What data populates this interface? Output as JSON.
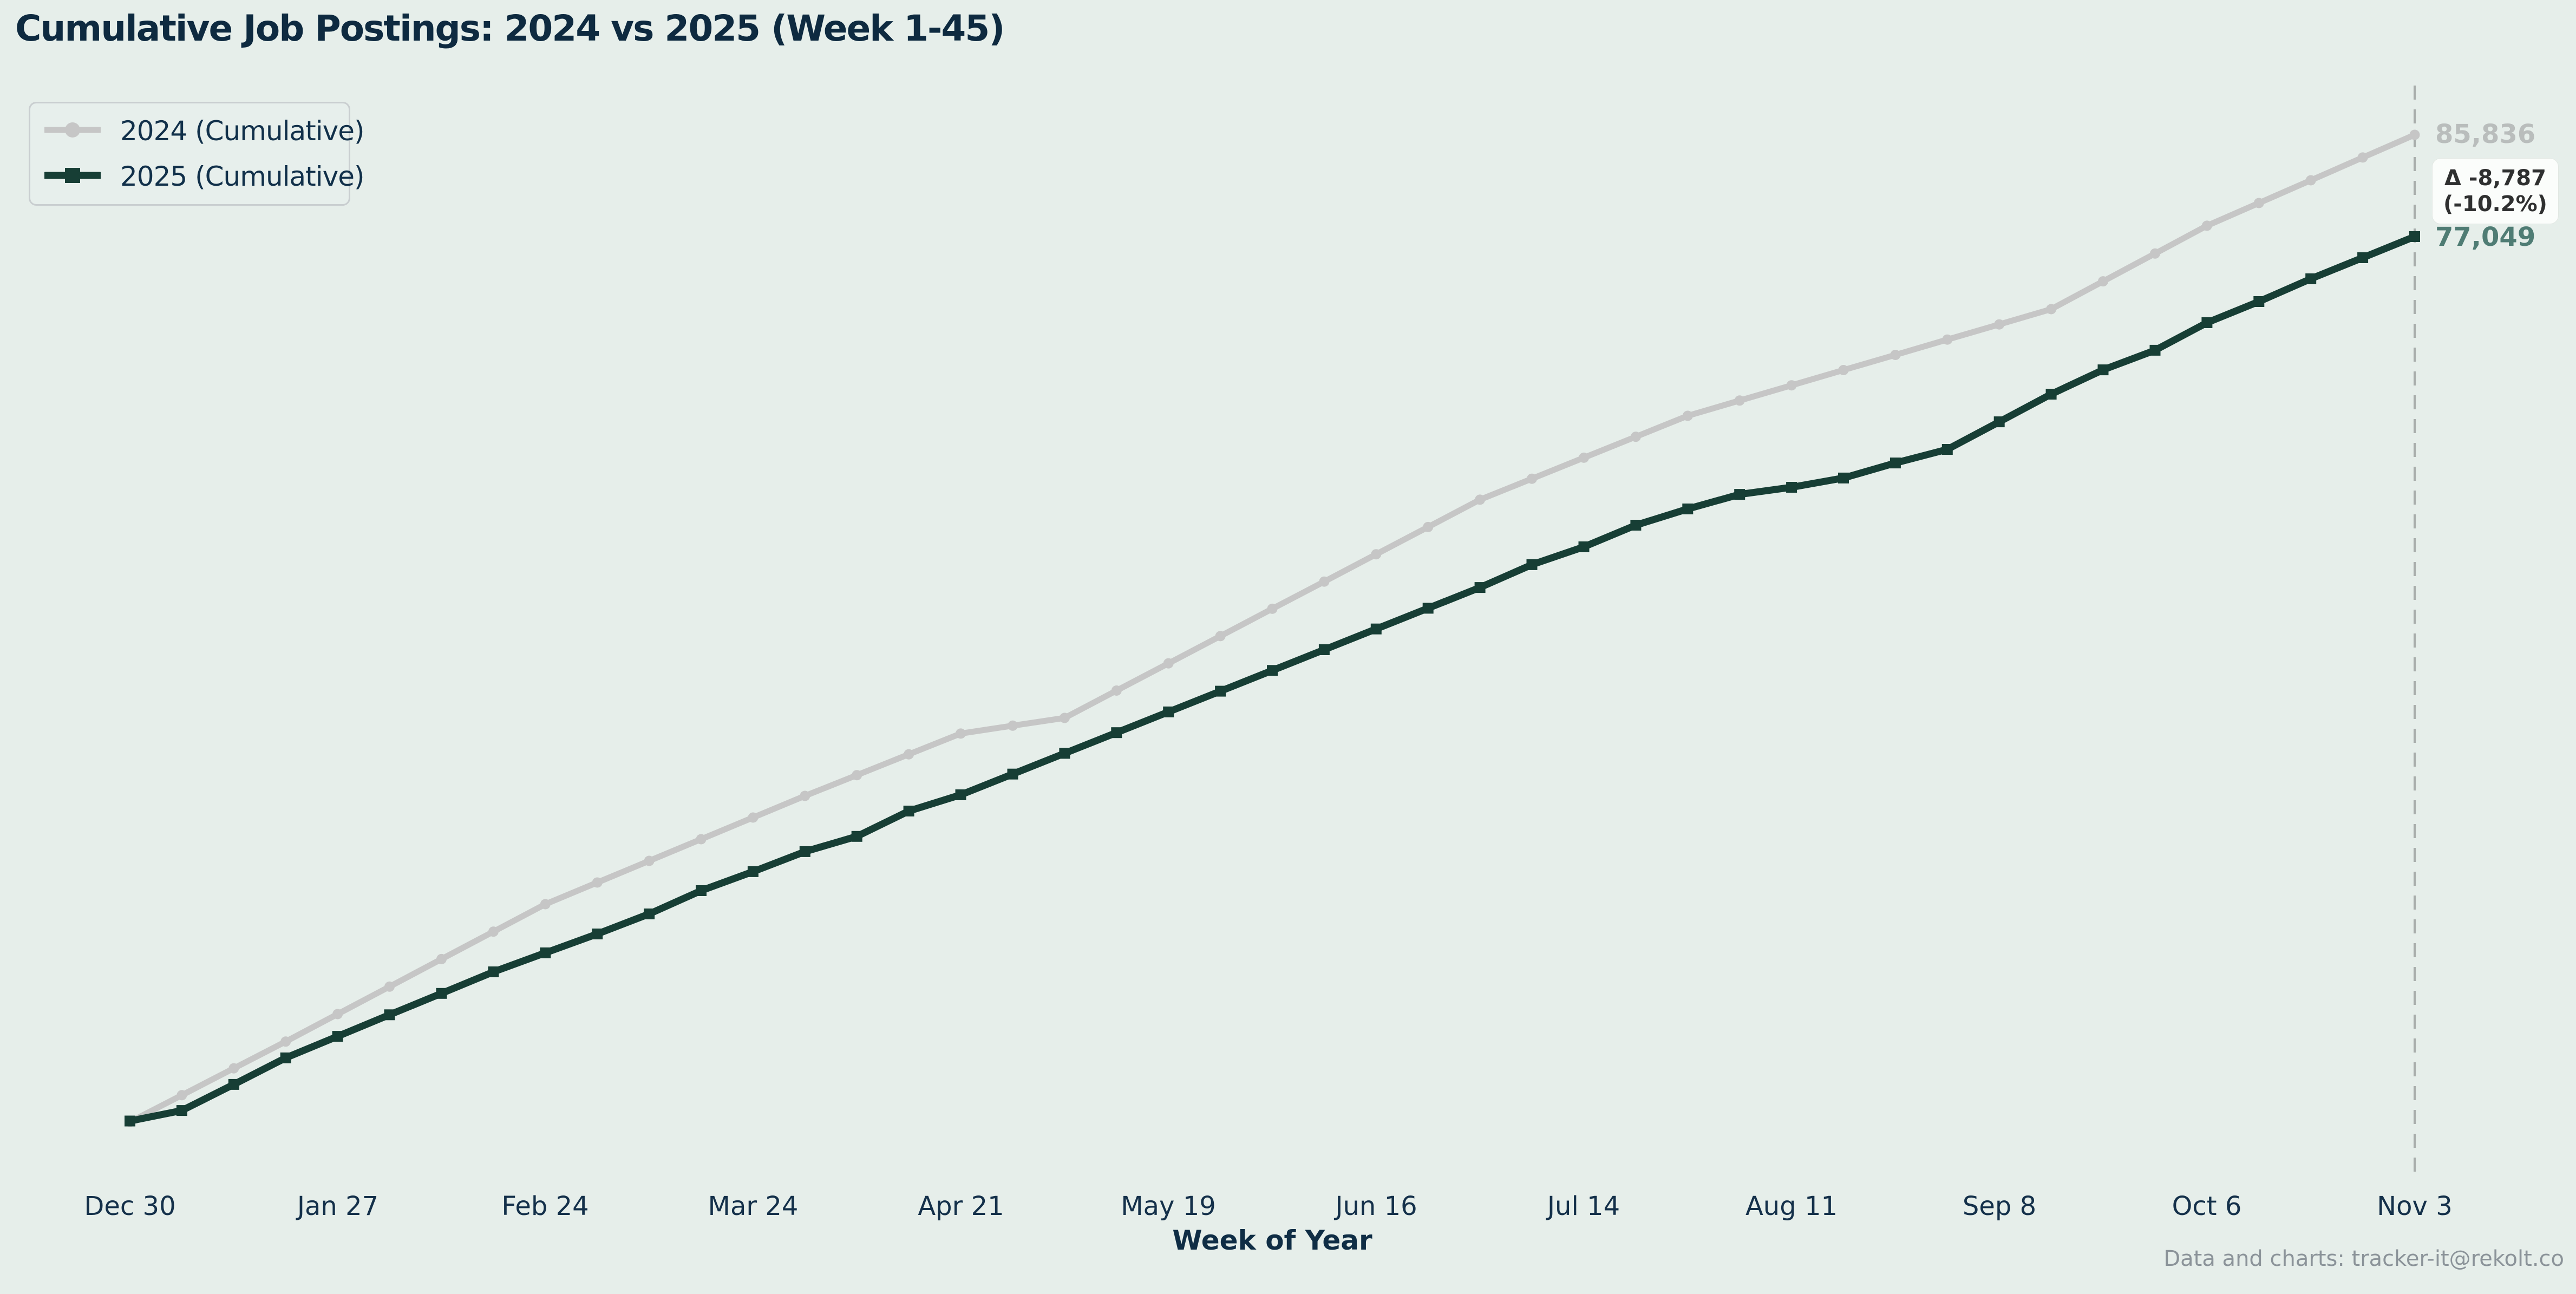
{
  "title": "Cumulative Job Postings: 2024 vs 2025 (Week 1-45)",
  "legend": {
    "items": [
      {
        "label": "2024 (Cumulative)"
      },
      {
        "label": "2025 (Cumulative)"
      }
    ]
  },
  "annotations": {
    "end_2024": "85,836",
    "delta_line1": "Δ -8,787",
    "delta_line2": "(-10.2%)",
    "end_2025": "77,049"
  },
  "x_axis": {
    "label": "Week of Year",
    "tick_labels": [
      "Dec 30",
      "Jan 27",
      "Feb 24",
      "Mar 24",
      "Apr 21",
      "May 19",
      "Jun 16",
      "Jul 14",
      "Aug 11",
      "Sep 8",
      "Oct 6",
      "Nov 3"
    ]
  },
  "footer": {
    "credit": "Data and charts: tracker-it@rekolt.co"
  },
  "colors": {
    "background": "#e6eeea",
    "series_2024": "#c6c6c6",
    "series_2025": "#173e35",
    "title_text": "#0e2a40",
    "tick_text": "#14304a",
    "end_label_2024": "#b9bdbc",
    "end_label_2025": "#4f7c74",
    "delta_text": "#2f3030",
    "delta_bg": "#fbfdfb",
    "dashed_line": "#a8adab",
    "footer_text": "#8b9399"
  },
  "chart_data": {
    "type": "line",
    "title": "Cumulative Job Postings: 2024 vs 2025 (Week 1-45)",
    "xlabel": "Week of Year",
    "ylabel": "",
    "grid": false,
    "legend_position": "upper left",
    "ylim": [
      0,
      90000
    ],
    "x": [
      "Dec 30",
      "Jan 6",
      "Jan 13",
      "Jan 20",
      "Jan 27",
      "Feb 3",
      "Feb 10",
      "Feb 17",
      "Feb 24",
      "Mar 3",
      "Mar 10",
      "Mar 17",
      "Mar 24",
      "Mar 31",
      "Apr 7",
      "Apr 14",
      "Apr 21",
      "Apr 28",
      "May 5",
      "May 12",
      "May 19",
      "May 26",
      "Jun 2",
      "Jun 9",
      "Jun 16",
      "Jun 23",
      "Jun 30",
      "Jul 7",
      "Jul 14",
      "Jul 21",
      "Jul 28",
      "Aug 4",
      "Aug 11",
      "Aug 18",
      "Aug 25",
      "Sep 1",
      "Sep 8",
      "Sep 15",
      "Sep 22",
      "Sep 29",
      "Oct 6",
      "Oct 13",
      "Oct 20",
      "Oct 27",
      "Nov 3"
    ],
    "tick_indices": [
      0,
      4,
      8,
      12,
      16,
      20,
      24,
      28,
      32,
      36,
      40,
      44
    ],
    "series": [
      {
        "name": "2024 (Cumulative)",
        "color": "#c6c6c6",
        "marker": "circle",
        "final_value": 85836,
        "values": [
          620,
          2930,
          5250,
          7560,
          9930,
          12300,
          14680,
          17050,
          19420,
          21290,
          23160,
          25030,
          26900,
          28770,
          30560,
          32360,
          34150,
          34830,
          35500,
          37860,
          40210,
          42560,
          44920,
          47270,
          49630,
          51980,
          54340,
          56150,
          57960,
          59770,
          61580,
          62900,
          64210,
          65530,
          66840,
          68160,
          69470,
          70790,
          73190,
          75590,
          77990,
          79950,
          81910,
          83880,
          85836
        ]
      },
      {
        "name": "2025 (Cumulative)",
        "color": "#173e35",
        "marker": "square",
        "final_value": 77049,
        "values": [
          700,
          1610,
          3860,
          6150,
          8010,
          9870,
          11720,
          13580,
          15220,
          16850,
          18580,
          20590,
          22230,
          23960,
          25270,
          27460,
          28860,
          30650,
          32440,
          34230,
          36020,
          37810,
          39600,
          41390,
          43180,
          44970,
          46760,
          48730,
          50270,
          52140,
          53540,
          54800,
          55410,
          56210,
          57510,
          58680,
          61060,
          63450,
          65550,
          67240,
          69620,
          71440,
          73410,
          75230,
          77049
        ]
      }
    ],
    "annotations": {
      "delta_value": -8787,
      "delta_percent": -10.2,
      "reference_line": "dashed vertical at Nov 3"
    }
  }
}
